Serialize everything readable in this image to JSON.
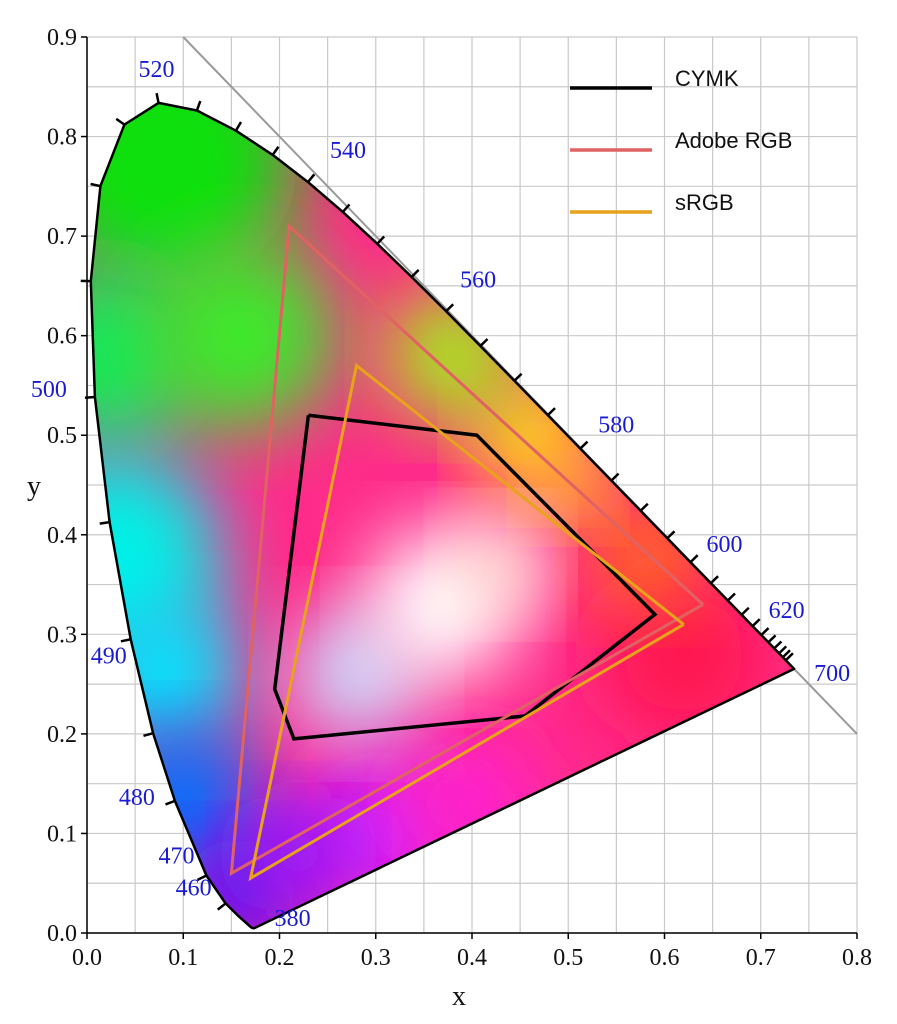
{
  "chart_data": {
    "type": "scatter",
    "title": "",
    "xlabel": "x",
    "ylabel": "y",
    "xlim": [
      0.0,
      0.8
    ],
    "ylim": [
      0.0,
      0.9
    ],
    "grid": true,
    "legend_position": "top-right",
    "x_tick_labels": [
      "0.0",
      "0.1",
      "0.2",
      "0.3",
      "0.4",
      "0.5",
      "0.6",
      "0.7",
      "0.8"
    ],
    "y_tick_labels": [
      "0.0",
      "0.1",
      "0.2",
      "0.3",
      "0.4",
      "0.5",
      "0.6",
      "0.7",
      "0.8",
      "0.9"
    ],
    "wavelength_label_color": "#1a1ad4",
    "wavelength_labels": [
      {
        "text": "380",
        "x": 0.1741,
        "y": 0.005
      },
      {
        "text": "460",
        "x": 0.144,
        "y": 0.0297
      },
      {
        "text": "470",
        "x": 0.1241,
        "y": 0.0578
      },
      {
        "text": "480",
        "x": 0.0913,
        "y": 0.1327
      },
      {
        "text": "490",
        "x": 0.0454,
        "y": 0.295
      },
      {
        "text": "500",
        "x": 0.0082,
        "y": 0.5384
      },
      {
        "text": "520",
        "x": 0.0743,
        "y": 0.8338
      },
      {
        "text": "540",
        "x": 0.2296,
        "y": 0.7543
      },
      {
        "text": "560",
        "x": 0.3731,
        "y": 0.6245
      },
      {
        "text": "580",
        "x": 0.5125,
        "y": 0.4866
      },
      {
        "text": "600",
        "x": 0.627,
        "y": 0.3725
      },
      {
        "text": "620",
        "x": 0.6915,
        "y": 0.3083
      },
      {
        "text": "700",
        "x": 0.7347,
        "y": 0.2653
      }
    ],
    "spectral_locus": {
      "x": [
        0.1741,
        0.1738,
        0.1736,
        0.1733,
        0.1726,
        0.1714,
        0.1689,
        0.1644,
        0.1566,
        0.144,
        0.1241,
        0.0913,
        0.0687,
        0.0454,
        0.0235,
        0.0082,
        0.0039,
        0.0139,
        0.0389,
        0.0743,
        0.1142,
        0.1547,
        0.1929,
        0.2296,
        0.2658,
        0.3016,
        0.3373,
        0.3731,
        0.4087,
        0.4441,
        0.4788,
        0.5125,
        0.5448,
        0.5752,
        0.6029,
        0.627,
        0.6482,
        0.6658,
        0.6801,
        0.6915,
        0.7006,
        0.7079,
        0.714,
        0.719,
        0.723,
        0.726,
        0.7347
      ],
      "y": [
        0.005,
        0.0049,
        0.0049,
        0.0048,
        0.0048,
        0.0051,
        0.0069,
        0.0109,
        0.0177,
        0.0297,
        0.0578,
        0.1327,
        0.2007,
        0.295,
        0.4127,
        0.5384,
        0.6548,
        0.7502,
        0.812,
        0.8338,
        0.8262,
        0.8059,
        0.7816,
        0.7543,
        0.7243,
        0.6923,
        0.6589,
        0.6245,
        0.5896,
        0.5547,
        0.5202,
        0.4866,
        0.4544,
        0.4242,
        0.3965,
        0.3725,
        0.3514,
        0.334,
        0.3197,
        0.3083,
        0.2993,
        0.292,
        0.2859,
        0.2809,
        0.277,
        0.274,
        0.2653
      ]
    },
    "series": [
      {
        "name": "CYMK",
        "color": "#000000",
        "x": [
          0.23,
          0.405,
          0.59,
          0.455,
          0.215,
          0.195,
          0.23
        ],
        "y": [
          0.52,
          0.5,
          0.32,
          0.218,
          0.195,
          0.245,
          0.52
        ]
      },
      {
        "name": "Adobe RGB",
        "color": "#e06262",
        "x": [
          0.64,
          0.21,
          0.15,
          0.64
        ],
        "y": [
          0.33,
          0.71,
          0.06,
          0.33
        ]
      },
      {
        "name": "sRGB",
        "color": "#e8a21c",
        "x": [
          0.62,
          0.28,
          0.17,
          0.62
        ],
        "y": [
          0.31,
          0.57,
          0.055,
          0.31
        ]
      }
    ]
  }
}
